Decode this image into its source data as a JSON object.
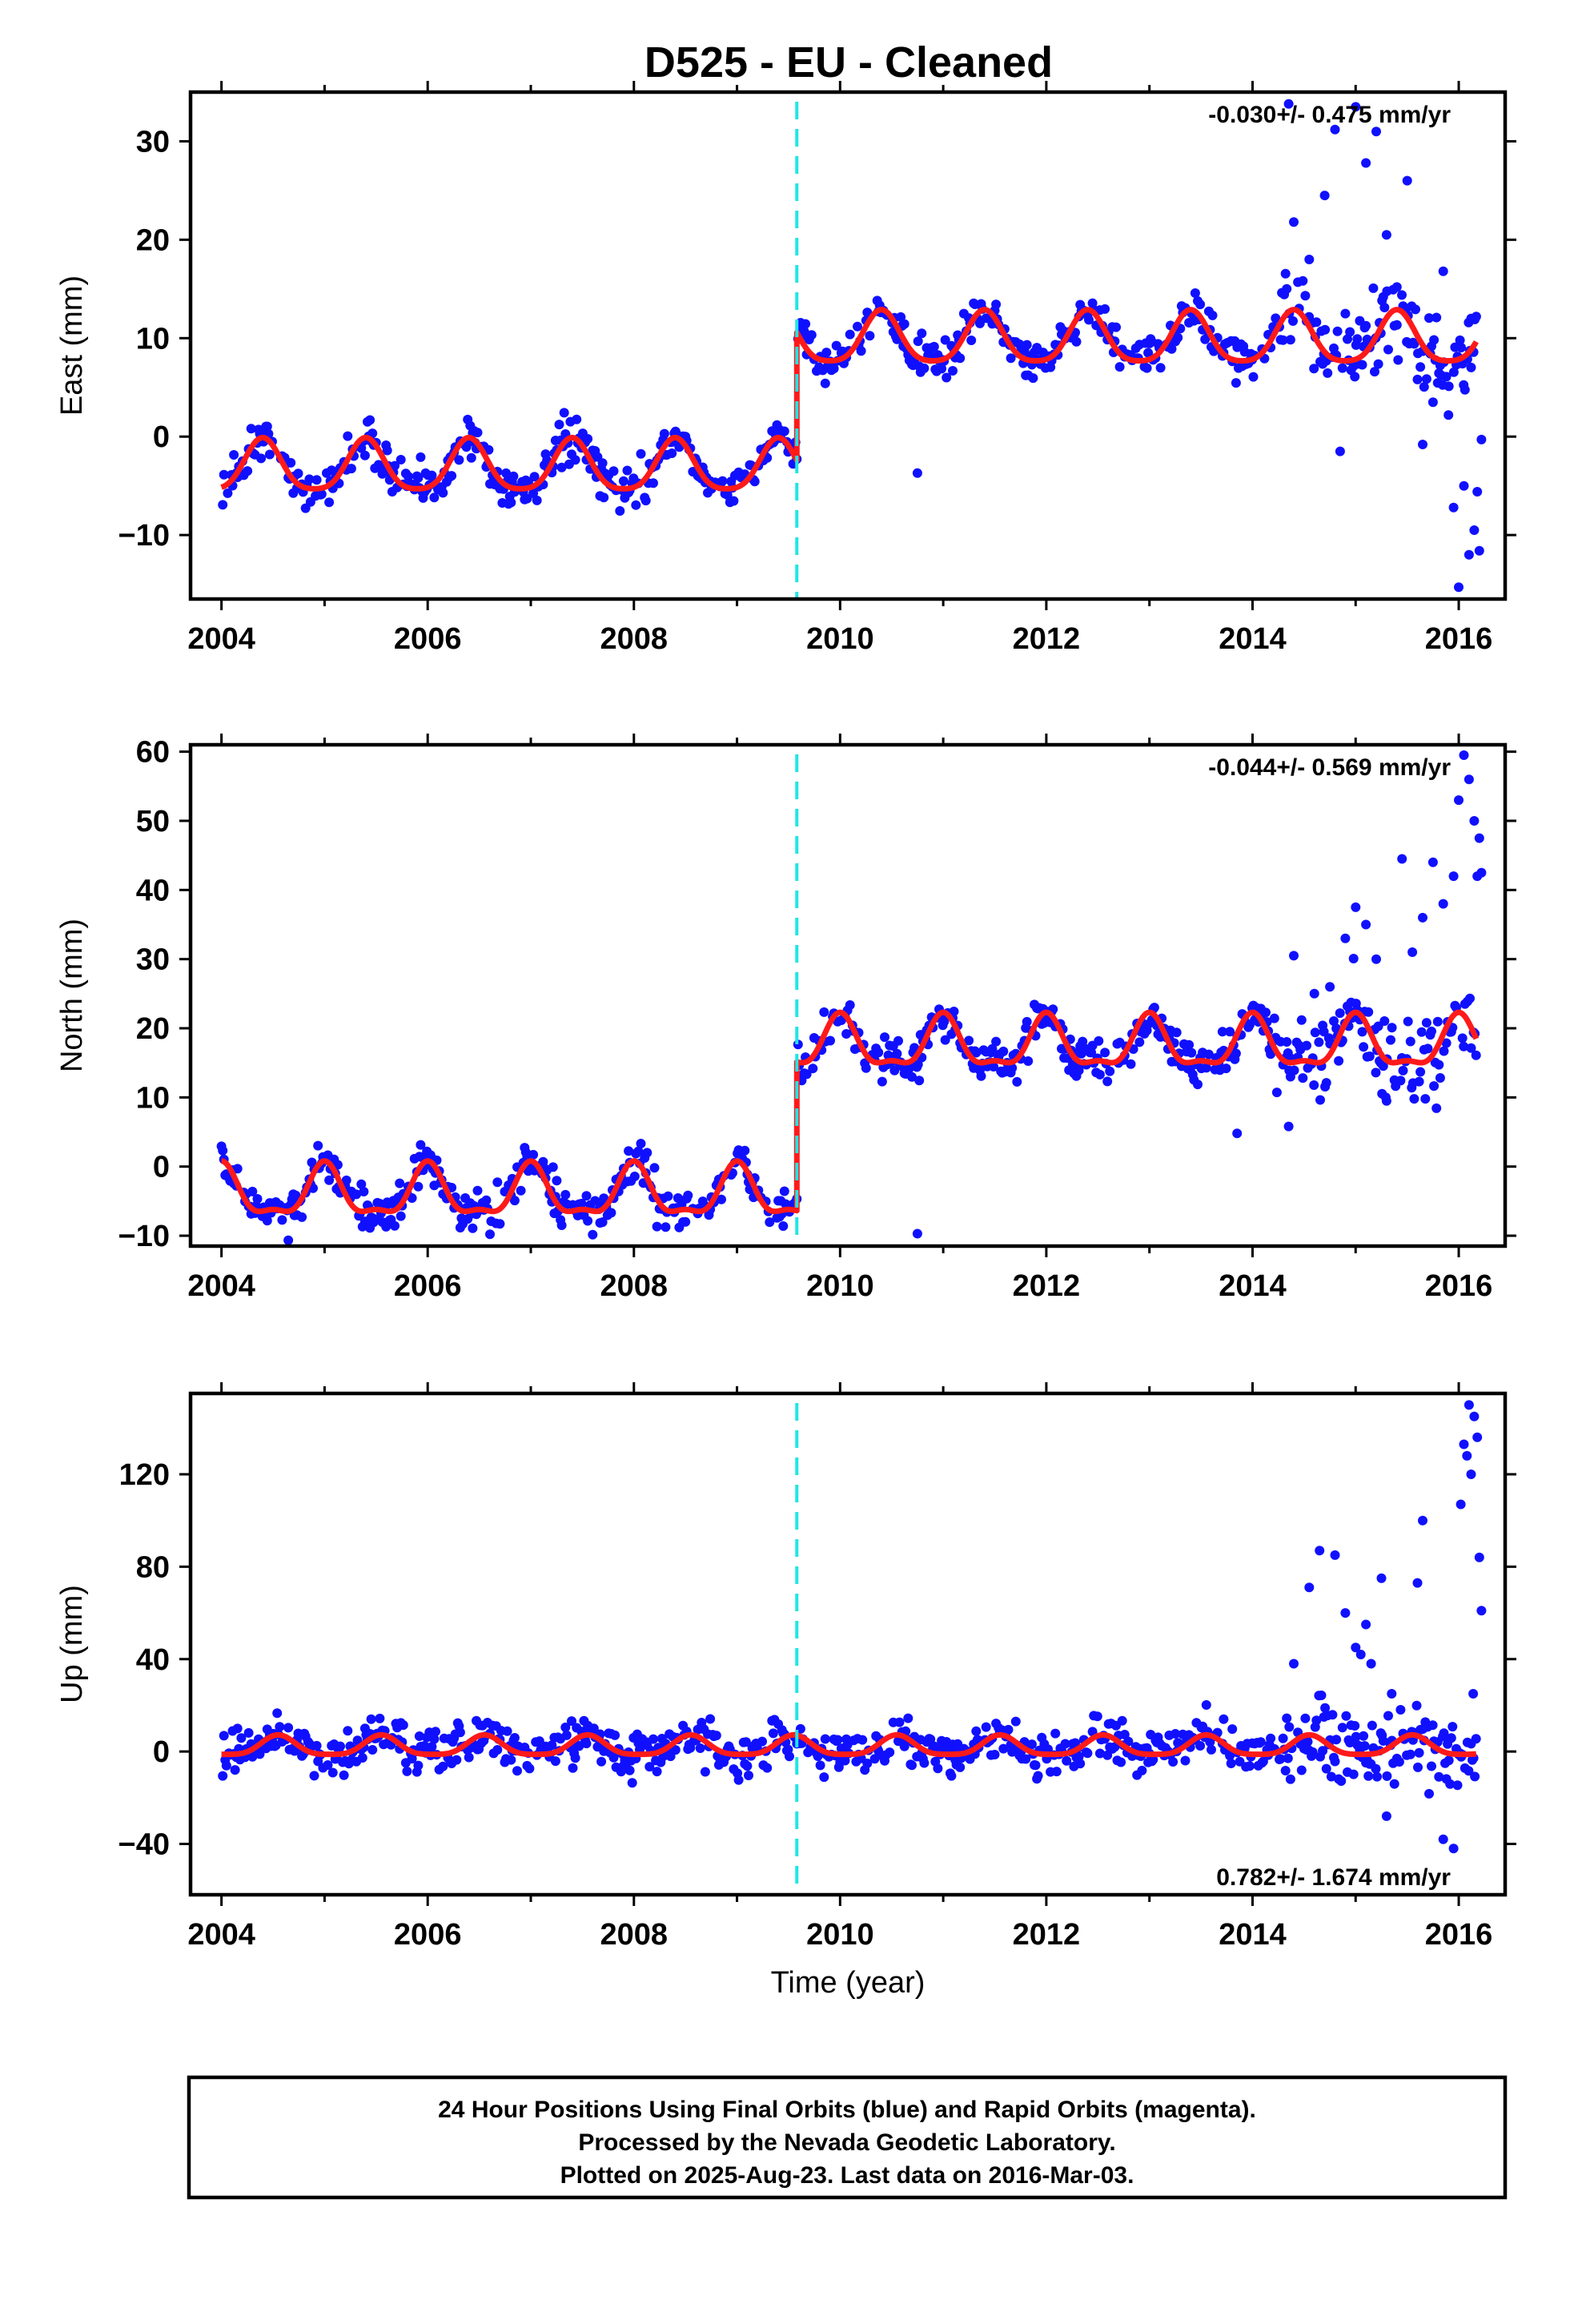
{
  "title": "D525  - EU - Cleaned",
  "footer": {
    "lines": [
      "24 Hour Positions Using Final Orbits (blue) and Rapid Orbits (magenta).",
      "Processed by the Nevada Geodetic Laboratory.",
      "Plotted on 2025-Aug-23. Last data on 2016-Mar-03."
    ]
  },
  "colors": {
    "data_points": "#1010ff",
    "model_line": "#ff1a1a",
    "step_marker": "#1ee6e6"
  },
  "chart_data": [
    {
      "type": "scatter",
      "component": "East",
      "ylabel": "East (mm)",
      "xlabel": "",
      "rate_label": "-0.030+/- 0.475 mm/yr",
      "xlim": [
        2003.7,
        2016.45
      ],
      "ylim": [
        -16.5,
        35
      ],
      "xticks": [
        "2004",
        "2006",
        "2008",
        "2010",
        "2012",
        "2014",
        "2016"
      ],
      "yticks": [
        "-10",
        "0",
        "10",
        "20",
        "30"
      ],
      "step_epoch": 2009.58,
      "model": {
        "offset_before": -3.2,
        "offset_after": 9.8,
        "annual_amp": 2.6,
        "semiannual_amp": 0.5,
        "phase_peak": 0.4,
        "end": 2016.17
      },
      "scatter_noise": 1.6,
      "outliers": [
        [
          2014.4,
          21.8
        ],
        [
          2014.55,
          18.0
        ],
        [
          2014.7,
          24.5
        ],
        [
          2014.8,
          31.2
        ],
        [
          2014.9,
          12.5
        ],
        [
          2015.0,
          33.5
        ],
        [
          2015.1,
          27.8
        ],
        [
          2015.2,
          31.0
        ],
        [
          2015.3,
          20.5
        ],
        [
          2015.4,
          15.2
        ],
        [
          2015.5,
          26.0
        ],
        [
          2014.35,
          33.8
        ],
        [
          2014.85,
          -1.5
        ],
        [
          2015.6,
          5.8
        ],
        [
          2015.65,
          -0.8
        ],
        [
          2015.75,
          3.5
        ],
        [
          2015.85,
          16.8
        ],
        [
          2015.9,
          2.2
        ],
        [
          2015.95,
          -7.2
        ],
        [
          2016.0,
          -15.3
        ],
        [
          2016.05,
          -5.0
        ],
        [
          2016.1,
          -12.0
        ],
        [
          2016.12,
          12.0
        ],
        [
          2016.15,
          -9.5
        ],
        [
          2016.18,
          -5.6
        ],
        [
          2016.2,
          -11.6
        ],
        [
          2016.22,
          -0.3
        ],
        [
          2016.17,
          12.2
        ],
        [
          2010.75,
          -3.7
        ]
      ]
    },
    {
      "type": "scatter",
      "component": "North",
      "ylabel": "North (mm)",
      "xlabel": "",
      "rate_label": "-0.044+/- 0.569 mm/yr",
      "xlim": [
        2003.7,
        2016.45
      ],
      "ylim": [
        -11.5,
        61
      ],
      "xticks": [
        "2004",
        "2006",
        "2008",
        "2010",
        "2012",
        "2014",
        "2016"
      ],
      "yticks": [
        "-10",
        "0",
        "10",
        "20",
        "30",
        "40",
        "50",
        "60"
      ],
      "step_epoch": 2009.58,
      "model": {
        "offset_before": -4.0,
        "offset_after": 17.5,
        "annual_amp": 3.5,
        "semiannual_amp": 1.3,
        "phase_peak": 0.0,
        "end": 2016.17
      },
      "scatter_noise": 2.2,
      "outliers": [
        [
          2014.4,
          30.5
        ],
        [
          2014.6,
          25.0
        ],
        [
          2014.75,
          26.0
        ],
        [
          2014.9,
          33.0
        ],
        [
          2015.0,
          37.5
        ],
        [
          2015.1,
          35.0
        ],
        [
          2015.2,
          30.0
        ],
        [
          2015.45,
          44.5
        ],
        [
          2015.55,
          31.0
        ],
        [
          2015.65,
          36.0
        ],
        [
          2015.75,
          44.0
        ],
        [
          2015.85,
          38.0
        ],
        [
          2015.95,
          42.0
        ],
        [
          2016.0,
          53.0
        ],
        [
          2016.05,
          59.5
        ],
        [
          2016.1,
          56.0
        ],
        [
          2016.15,
          50.0
        ],
        [
          2016.2,
          47.5
        ],
        [
          2016.22,
          42.5
        ],
        [
          2016.18,
          42.0
        ],
        [
          2014.35,
          5.8
        ],
        [
          2015.3,
          9.5
        ],
        [
          2013.85,
          4.8
        ],
        [
          2010.75,
          -9.7
        ]
      ]
    },
    {
      "type": "scatter",
      "component": "Up",
      "ylabel": "Up (mm)",
      "xlabel": "Time (year)",
      "rate_label": "0.782+/- 1.674 mm/yr",
      "xlim": [
        2003.7,
        2016.45
      ],
      "ylim": [
        -62,
        155
      ],
      "xticks": [
        "2004",
        "2006",
        "2008",
        "2010",
        "2012",
        "2014",
        "2016"
      ],
      "yticks": [
        "-40",
        "0",
        "40",
        "80",
        "120"
      ],
      "step_epoch": 2009.58,
      "model": {
        "offset_before": 2.0,
        "offset_after": 2.0,
        "annual_amp": 4.2,
        "semiannual_amp": 1.0,
        "phase_peak": 0.55,
        "end": 2016.17
      },
      "scatter_noise": 6.5,
      "outliers": [
        [
          2014.55,
          71.0
        ],
        [
          2014.65,
          87.0
        ],
        [
          2014.8,
          85.0
        ],
        [
          2014.9,
          60.0
        ],
        [
          2015.0,
          45.0
        ],
        [
          2015.05,
          42.0
        ],
        [
          2015.1,
          55.0
        ],
        [
          2015.15,
          38.0
        ],
        [
          2015.25,
          75.0
        ],
        [
          2015.35,
          25.0
        ],
        [
          2015.6,
          73.0
        ],
        [
          2015.65,
          100.0
        ],
        [
          2015.85,
          -38.0
        ],
        [
          2015.95,
          -42.0
        ],
        [
          2016.05,
          133.0
        ],
        [
          2016.08,
          128.0
        ],
        [
          2016.1,
          150.0
        ],
        [
          2016.12,
          120.0
        ],
        [
          2016.15,
          145.0
        ],
        [
          2016.18,
          136.0
        ],
        [
          2016.2,
          84.0
        ],
        [
          2016.22,
          61.0
        ],
        [
          2016.14,
          25.0
        ],
        [
          2016.02,
          107.0
        ],
        [
          2015.3,
          -28.0
        ],
        [
          2014.4,
          38.0
        ]
      ]
    }
  ]
}
